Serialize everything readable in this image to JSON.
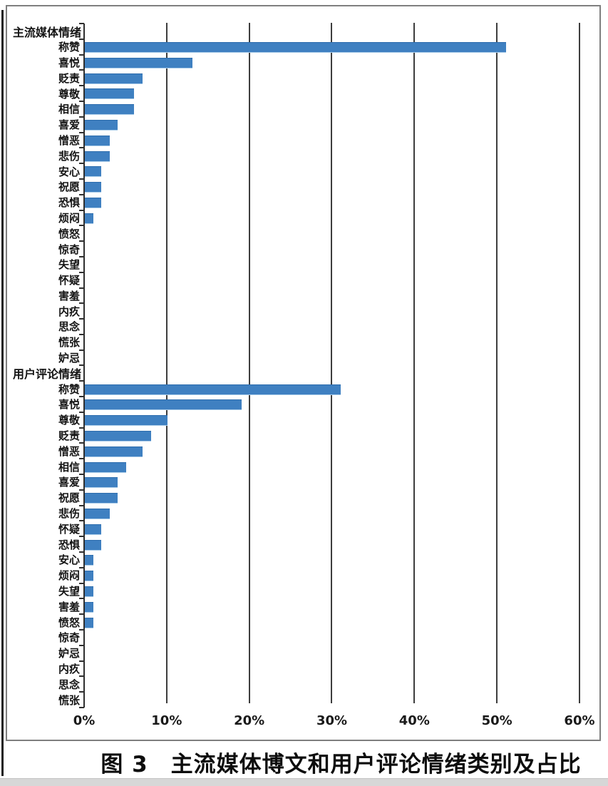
{
  "page": {
    "caption": "图 3　主流媒体博文和用户评论情绪类别及占比"
  },
  "chart_data": {
    "type": "bar",
    "orientation": "horizontal",
    "title": "主流媒体博文和用户评论情绪类别及占比",
    "xlabel": "",
    "ylabel": "",
    "unit": "percent",
    "xlim": [
      0,
      60
    ],
    "x_ticks": [
      "0%",
      "10%",
      "20%",
      "30%",
      "40%",
      "50%",
      "60%"
    ],
    "grid": true,
    "bar_color": "#3f80c1",
    "groups": [
      {
        "name": "主流媒体情绪",
        "categories": [
          "称赞",
          "喜悦",
          "贬责",
          "尊敬",
          "相信",
          "喜爱",
          "憎恶",
          "悲伤",
          "安心",
          "祝愿",
          "恐惧",
          "烦闷",
          "愤怒",
          "惊奇",
          "失望",
          "怀疑",
          "害羞",
          "内疚",
          "思念",
          "慌张",
          "妒忌"
        ],
        "values": [
          51,
          13,
          7,
          6,
          6,
          4,
          3,
          3,
          2,
          2,
          2,
          1,
          0,
          0,
          0,
          0,
          0,
          0,
          0,
          0,
          0
        ]
      },
      {
        "name": "用户评论情绪",
        "categories": [
          "称赞",
          "喜悦",
          "尊敬",
          "贬责",
          "憎恶",
          "相信",
          "喜爱",
          "祝愿",
          "悲伤",
          "怀疑",
          "恐惧",
          "安心",
          "烦闷",
          "失望",
          "害羞",
          "愤怒",
          "惊奇",
          "妒忌",
          "内疚",
          "思念",
          "慌张"
        ],
        "values": [
          31,
          19,
          10,
          8,
          7,
          5,
          4,
          4,
          3,
          2,
          2,
          1,
          1,
          1,
          1,
          1,
          0,
          0,
          0,
          0,
          0
        ]
      }
    ]
  }
}
